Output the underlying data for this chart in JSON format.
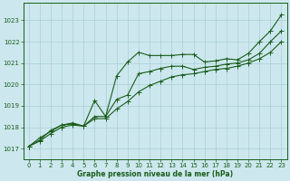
{
  "xlabel": "Graphe pression niveau de la mer (hPa)",
  "background_color": "#cce8ee",
  "grid_color": "#aacdd6",
  "line_color": "#1a5c1a",
  "text_color": "#1a5c1a",
  "ylim": [
    1016.5,
    1023.8
  ],
  "xlim": [
    -0.5,
    23.5
  ],
  "yticks": [
    1017,
    1018,
    1019,
    1020,
    1021,
    1022,
    1023
  ],
  "xticks": [
    0,
    1,
    2,
    3,
    4,
    5,
    6,
    7,
    8,
    9,
    10,
    11,
    12,
    13,
    14,
    15,
    16,
    17,
    18,
    19,
    20,
    21,
    22,
    23
  ],
  "s1": [
    1017.1,
    1017.5,
    1017.8,
    1018.1,
    1018.15,
    1018.05,
    1019.25,
    1018.5,
    1020.4,
    1021.05,
    1021.5,
    1021.35,
    1021.35,
    1021.35,
    1021.4,
    1021.4,
    1021.05,
    1021.1,
    1021.2,
    1021.15,
    1021.45,
    1022.0,
    1022.5,
    1023.25
  ],
  "s2": [
    1017.1,
    1017.4,
    1017.85,
    1018.1,
    1018.2,
    1018.05,
    1018.5,
    1018.5,
    1019.3,
    1019.5,
    1020.5,
    1020.6,
    1020.75,
    1020.85,
    1020.85,
    1020.7,
    1020.8,
    1020.85,
    1020.95,
    1021.0,
    1021.15,
    1021.45,
    1022.0,
    1022.5
  ],
  "s3": [
    1017.1,
    1017.35,
    1017.7,
    1018.0,
    1018.1,
    1018.05,
    1018.4,
    1018.4,
    1018.85,
    1019.2,
    1019.65,
    1019.95,
    1020.15,
    1020.35,
    1020.45,
    1020.5,
    1020.6,
    1020.7,
    1020.75,
    1020.85,
    1021.0,
    1021.2,
    1021.5,
    1022.0
  ],
  "marker_size": 2.0,
  "linewidth": 0.8,
  "tick_fontsize": 5.0,
  "xlabel_fontsize": 5.5
}
